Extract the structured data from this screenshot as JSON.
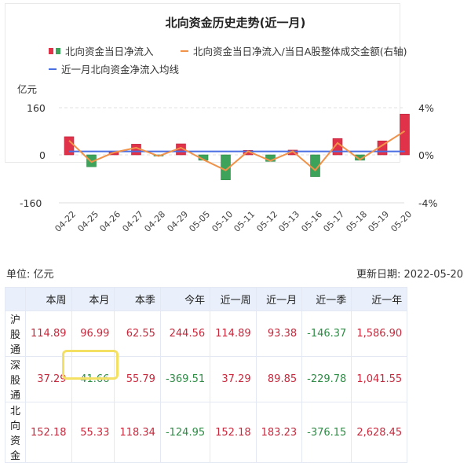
{
  "chart": {
    "title": "北向资金历史走势(近一月)",
    "legend": {
      "bars": "北向资金当日净流入",
      "ratio_line": "北向资金当日净流入/当日A股整体成交金额(右轴)",
      "avg_line": "近一月北向资金净流入均线"
    },
    "left_unit": "亿元",
    "left_ticks": [
      "160",
      "0",
      "-160"
    ],
    "right_ticks": [
      "4%",
      "0%",
      "-4%"
    ]
  },
  "chart_data": {
    "type": "bar",
    "title": "北向资金历史走势(近一月)",
    "xlabel": "",
    "ylabel": "亿元",
    "ylabel_right": "%",
    "ylim": [
      -160,
      160
    ],
    "ylim_right": [
      -4,
      4
    ],
    "grid": true,
    "legend_position": "top",
    "categories": [
      "04-22",
      "04-25",
      "04-26",
      "04-27",
      "04-28",
      "04-29",
      "05-05",
      "05-10",
      "05-11",
      "05-12",
      "05-13",
      "05-16",
      "05-17",
      "05-18",
      "05-19",
      "05-20"
    ],
    "series": [
      {
        "name": "北向资金当日净流入",
        "type": "bar",
        "axis": "left",
        "values": [
          61,
          -40,
          9,
          36,
          -2,
          37,
          -18,
          -84,
          15,
          -22,
          16,
          -73,
          55,
          -18,
          47,
          137
        ],
        "colors": {
          "positive": "#e0334a",
          "negative": "#3ea35a"
        }
      },
      {
        "name": "北向资金当日净流入/当日A股整体成交金额(右轴)",
        "type": "line",
        "axis": "right",
        "values": [
          1.2,
          -0.6,
          0.2,
          0.6,
          -0.1,
          0.6,
          -0.4,
          -1.3,
          0.3,
          -0.5,
          0.3,
          -1.3,
          1.0,
          -0.4,
          0.8,
          2.0
        ],
        "color": "#f0924a"
      },
      {
        "name": "近一月北向资金净流入均线",
        "type": "line",
        "axis": "left",
        "values": [
          11.5,
          11.5,
          11.5,
          11.5,
          11.5,
          11.5,
          11.5,
          11.5,
          11.5,
          11.5,
          11.5,
          11.5,
          11.5,
          11.5,
          11.5,
          11.5
        ],
        "color": "#4a6fe3"
      }
    ]
  },
  "table": {
    "unit_label": "单位: 亿元",
    "update_label": "更新日期: 2022-05-20",
    "columns": [
      "",
      "本周",
      "本月",
      "本季",
      "今年",
      "近一周",
      "近一月",
      "近一季",
      "近一年"
    ],
    "rows": [
      {
        "name": "沪股通",
        "values": [
          "114.89",
          "96.99",
          "62.55",
          "244.56",
          "114.89",
          "93.38",
          "-146.37",
          "1,586.90"
        ]
      },
      {
        "name": "深股通",
        "values": [
          "37.29",
          "-41.66",
          "55.79",
          "-369.51",
          "37.29",
          "89.85",
          "-229.78",
          "1,041.55"
        ]
      },
      {
        "name": "北向资金",
        "values": [
          "152.18",
          "55.33",
          "118.34",
          "-124.95",
          "152.18",
          "183.23",
          "-376.15",
          "2,628.45"
        ]
      }
    ],
    "highlighted_cell": {
      "row": 2,
      "col": 0,
      "color": "#f4e163"
    }
  }
}
